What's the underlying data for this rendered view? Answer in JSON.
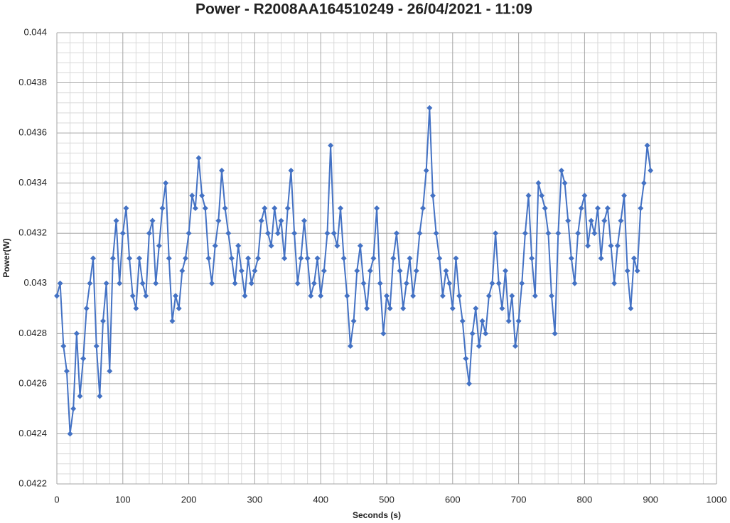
{
  "chart_data": {
    "type": "line",
    "title": "Power - R2008AA164510249 - 26/04/2021 - 11:09",
    "x_label": "Seconds (s)",
    "y_label": "Power(W)",
    "xlim": [
      0,
      1000
    ],
    "ylim": [
      0.0422,
      0.044
    ],
    "xticks": [
      0,
      100,
      200,
      300,
      400,
      500,
      600,
      700,
      800,
      900,
      1000
    ],
    "yticks": [
      0.0422,
      0.0424,
      0.0426,
      0.0428,
      0.043,
      0.0432,
      0.0434,
      0.0436,
      0.0438,
      0.044
    ],
    "grid": true,
    "minor_grid_per_tick": 5,
    "marker": "diamond",
    "x": [
      0,
      5,
      10,
      15,
      20,
      25,
      30,
      35,
      40,
      45,
      50,
      55,
      60,
      65,
      70,
      75,
      80,
      85,
      90,
      95,
      100,
      105,
      110,
      115,
      120,
      125,
      130,
      135,
      140,
      145,
      150,
      155,
      160,
      165,
      170,
      175,
      180,
      185,
      190,
      195,
      200,
      205,
      210,
      215,
      220,
      225,
      230,
      235,
      240,
      245,
      250,
      255,
      260,
      265,
      270,
      275,
      280,
      285,
      290,
      295,
      300,
      305,
      310,
      315,
      320,
      325,
      330,
      335,
      340,
      345,
      350,
      355,
      360,
      365,
      370,
      375,
      380,
      385,
      390,
      395,
      400,
      405,
      410,
      415,
      420,
      425,
      430,
      435,
      440,
      445,
      450,
      455,
      460,
      465,
      470,
      475,
      480,
      485,
      490,
      495,
      500,
      505,
      510,
      515,
      520,
      525,
      530,
      535,
      540,
      545,
      550,
      555,
      560,
      565,
      570,
      575,
      580,
      585,
      590,
      595,
      600,
      605,
      610,
      615,
      620,
      625,
      630,
      635,
      640,
      645,
      650,
      655,
      660,
      665,
      670,
      675,
      680,
      685,
      690,
      695,
      700,
      705,
      710,
      715,
      720,
      725,
      730,
      735,
      740,
      745,
      750,
      755,
      760,
      765,
      770,
      775,
      780,
      785,
      790,
      795,
      800,
      805,
      810,
      815,
      820,
      825,
      830,
      835,
      840,
      845,
      850,
      855,
      860,
      865,
      870,
      875,
      880,
      885,
      890,
      895,
      900
    ],
    "series": [
      {
        "name": "Power",
        "color": "#4472c4",
        "values": [
          0.04295,
          0.043,
          0.04275,
          0.04265,
          0.0424,
          0.0425,
          0.0428,
          0.04255,
          0.0427,
          0.0429,
          0.043,
          0.0431,
          0.04275,
          0.04255,
          0.04285,
          0.043,
          0.04265,
          0.0431,
          0.04325,
          0.043,
          0.0432,
          0.0433,
          0.0431,
          0.04295,
          0.0429,
          0.0431,
          0.043,
          0.04295,
          0.0432,
          0.04325,
          0.043,
          0.04315,
          0.0433,
          0.0434,
          0.0431,
          0.04285,
          0.04295,
          0.0429,
          0.04305,
          0.0431,
          0.0432,
          0.04335,
          0.0433,
          0.0435,
          0.04335,
          0.0433,
          0.0431,
          0.043,
          0.04315,
          0.04325,
          0.04345,
          0.0433,
          0.0432,
          0.0431,
          0.043,
          0.04315,
          0.04305,
          0.04295,
          0.0431,
          0.043,
          0.04305,
          0.0431,
          0.04325,
          0.0433,
          0.0432,
          0.04315,
          0.0433,
          0.0432,
          0.04325,
          0.0431,
          0.0433,
          0.04345,
          0.0432,
          0.043,
          0.0431,
          0.04325,
          0.0431,
          0.04295,
          0.043,
          0.0431,
          0.04295,
          0.04305,
          0.0432,
          0.04355,
          0.0432,
          0.04315,
          0.0433,
          0.0431,
          0.04295,
          0.04275,
          0.04285,
          0.04305,
          0.04315,
          0.043,
          0.0429,
          0.04305,
          0.0431,
          0.0433,
          0.043,
          0.0428,
          0.04295,
          0.0429,
          0.0431,
          0.0432,
          0.04305,
          0.0429,
          0.043,
          0.0431,
          0.04295,
          0.04305,
          0.0432,
          0.0433,
          0.04345,
          0.0437,
          0.04335,
          0.0432,
          0.0431,
          0.04295,
          0.04305,
          0.043,
          0.0429,
          0.0431,
          0.04295,
          0.04285,
          0.0427,
          0.0426,
          0.0428,
          0.0429,
          0.04275,
          0.04285,
          0.0428,
          0.04295,
          0.043,
          0.0432,
          0.043,
          0.0429,
          0.04305,
          0.04285,
          0.04295,
          0.04275,
          0.04285,
          0.043,
          0.0432,
          0.04335,
          0.0431,
          0.04295,
          0.0434,
          0.04335,
          0.0433,
          0.0432,
          0.04295,
          0.0428,
          0.0432,
          0.04345,
          0.0434,
          0.04325,
          0.0431,
          0.043,
          0.0432,
          0.0433,
          0.04335,
          0.04315,
          0.04325,
          0.0432,
          0.0433,
          0.0431,
          0.04325,
          0.0433,
          0.04315,
          0.043,
          0.04315,
          0.04325,
          0.04335,
          0.04305,
          0.0429,
          0.0431,
          0.04305,
          0.0433,
          0.0434,
          0.04355,
          0.04345
        ]
      }
    ]
  }
}
